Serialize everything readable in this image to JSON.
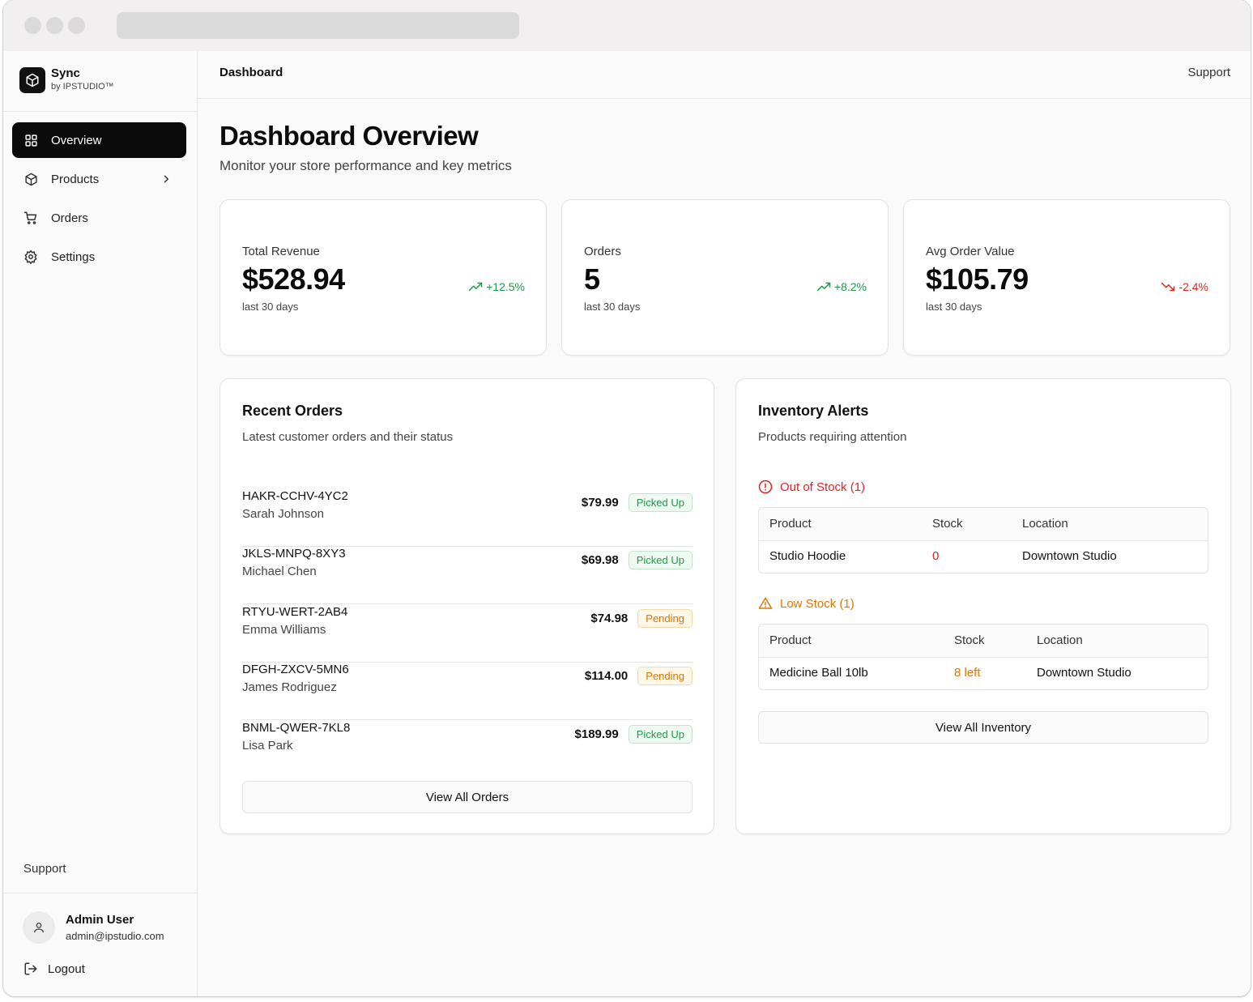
{
  "brand": {
    "name": "Sync",
    "subtitle": "by IPSTUDIO™"
  },
  "sidebar": {
    "items": [
      {
        "label": "Overview",
        "icon": "grid-icon",
        "active": true
      },
      {
        "label": "Products",
        "icon": "box-icon",
        "has_submenu": true
      },
      {
        "label": "Orders",
        "icon": "cart-icon"
      },
      {
        "label": "Settings",
        "icon": "gear-icon"
      }
    ],
    "support_label": "Support",
    "user": {
      "name": "Admin User",
      "email": "admin@ipstudio.com"
    },
    "logout_label": "Logout"
  },
  "topbar": {
    "title": "Dashboard",
    "support_label": "Support"
  },
  "page": {
    "title": "Dashboard Overview",
    "subtitle": "Monitor your store performance and key metrics"
  },
  "stats": [
    {
      "label": "Total Revenue",
      "value": "$528.94",
      "trend": "+12.5%",
      "direction": "up",
      "period": "last 30 days"
    },
    {
      "label": "Orders",
      "value": "5",
      "trend": "+8.2%",
      "direction": "up",
      "period": "last 30 days"
    },
    {
      "label": "Avg Order Value",
      "value": "$105.79",
      "trend": "-2.4%",
      "direction": "down",
      "period": "last 30 days"
    }
  ],
  "recent_orders": {
    "title": "Recent Orders",
    "subtitle": "Latest customer orders and their status",
    "orders": [
      {
        "id": "HAKR-CCHV-4YC2",
        "customer": "Sarah Johnson",
        "amount": "$79.99",
        "status": "Picked Up"
      },
      {
        "id": "JKLS-MNPQ-8XY3",
        "customer": "Michael Chen",
        "amount": "$69.98",
        "status": "Picked Up"
      },
      {
        "id": "RTYU-WERT-2AB4",
        "customer": "Emma Williams",
        "amount": "$74.98",
        "status": "Pending"
      },
      {
        "id": "DFGH-ZXCV-5MN6",
        "customer": "James Rodriguez",
        "amount": "$114.00",
        "status": "Pending"
      },
      {
        "id": "BNML-QWER-7KL8",
        "customer": "Lisa Park",
        "amount": "$189.99",
        "status": "Picked Up"
      }
    ],
    "button_label": "View All Orders"
  },
  "inventory": {
    "title": "Inventory Alerts",
    "subtitle": "Products requiring attention",
    "out_of_stock": {
      "label": "Out of Stock (1)",
      "columns": [
        "Product",
        "Stock",
        "Location"
      ],
      "rows": [
        {
          "product": "Studio Hoodie",
          "stock": "0",
          "location": "Downtown Studio"
        }
      ]
    },
    "low_stock": {
      "label": "Low Stock (1)",
      "columns": [
        "Product",
        "Stock",
        "Location"
      ],
      "rows": [
        {
          "product": "Medicine Ball 10lb",
          "stock": "8 left",
          "location": "Downtown Studio"
        }
      ]
    },
    "button_label": "View All Inventory"
  },
  "colors": {
    "accent": "#0b0b0b",
    "success": "#1f9a4c",
    "danger": "#dc2626",
    "warning": "#d97706"
  }
}
